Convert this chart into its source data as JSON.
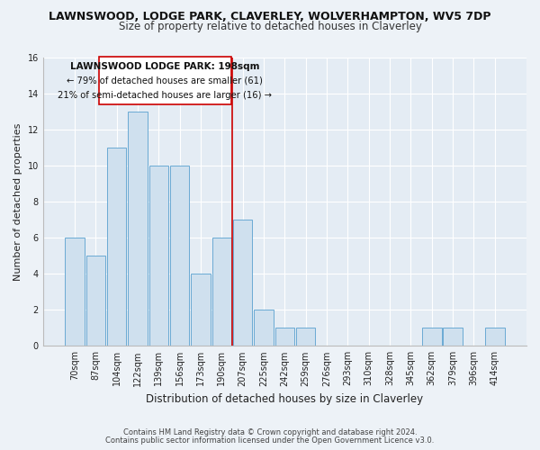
{
  "title": "LAWNSWOOD, LODGE PARK, CLAVERLEY, WOLVERHAMPTON, WV5 7DP",
  "subtitle": "Size of property relative to detached houses in Claverley",
  "xlabel": "Distribution of detached houses by size in Claverley",
  "ylabel": "Number of detached properties",
  "bar_labels": [
    "70sqm",
    "87sqm",
    "104sqm",
    "122sqm",
    "139sqm",
    "156sqm",
    "173sqm",
    "190sqm",
    "207sqm",
    "225sqm",
    "242sqm",
    "259sqm",
    "276sqm",
    "293sqm",
    "310sqm",
    "328sqm",
    "345sqm",
    "362sqm",
    "379sqm",
    "396sqm",
    "414sqm"
  ],
  "bar_values": [
    6,
    5,
    11,
    13,
    10,
    10,
    4,
    6,
    7,
    2,
    1,
    1,
    0,
    0,
    0,
    0,
    0,
    1,
    1,
    0,
    1
  ],
  "bar_color": "#cfe0ee",
  "bar_edge_color": "#6aaad4",
  "vline_x_idx": 7.5,
  "vline_color": "#cc0000",
  "ylim": [
    0,
    16
  ],
  "yticks": [
    0,
    2,
    4,
    6,
    8,
    10,
    12,
    14,
    16
  ],
  "annotation_title": "LAWNSWOOD LODGE PARK: 198sqm",
  "annotation_line1": "← 79% of detached houses are smaller (61)",
  "annotation_line2": "21% of semi-detached houses are larger (16) →",
  "annotation_box_facecolor": "#ffffff",
  "annotation_box_edgecolor": "#cc0000",
  "footer_line1": "Contains HM Land Registry data © Crown copyright and database right 2024.",
  "footer_line2": "Contains public sector information licensed under the Open Government Licence v3.0.",
  "bg_color": "#edf2f7",
  "plot_bg_color": "#e4ecf4",
  "grid_color": "#ffffff",
  "title_fontsize": 9,
  "subtitle_fontsize": 8.5,
  "axis_label_fontsize": 8,
  "tick_fontsize": 7,
  "footer_fontsize": 6
}
